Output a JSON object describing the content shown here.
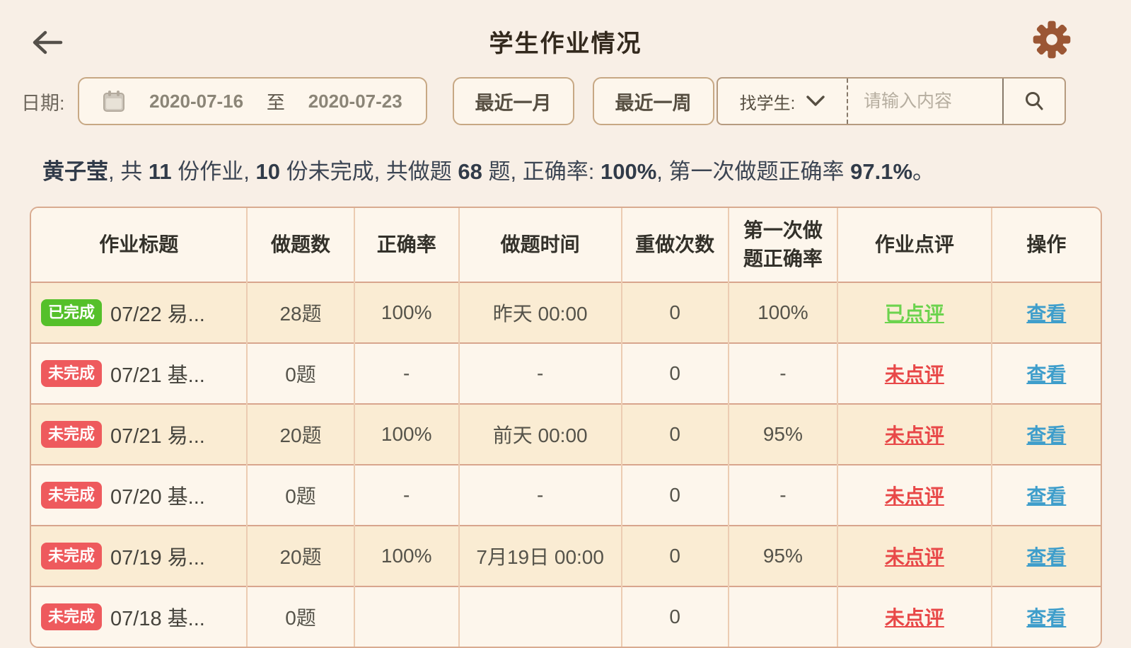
{
  "header": {
    "title": "学生作业情况",
    "back_icon": "arrow-left-icon",
    "settings_icon": "gear-icon"
  },
  "filters": {
    "date_label": "日期:",
    "calendar_icon": "calendar-icon",
    "date_start": "2020-07-16",
    "date_separator": "至",
    "date_end": "2020-07-23",
    "month_button": "最近一月",
    "week_button": "最近一周",
    "student_select_label": "找学生:",
    "chevron_icon": "chevron-down-icon",
    "search_placeholder": "请输入内容",
    "search_icon": "search-icon"
  },
  "summary": {
    "text": "黄子莹, 共 11 份作业, 10 份未完成, 共做题 68 题, 正确率: 100%, 第一次做题正确率 97.1%。",
    "segments": [
      {
        "text": "黄子莹",
        "bold": true
      },
      {
        "text": ", 共 ",
        "bold": false
      },
      {
        "text": "11",
        "bold": true
      },
      {
        "text": " 份作业, ",
        "bold": false
      },
      {
        "text": "10",
        "bold": true
      },
      {
        "text": " 份未完成, 共做题 ",
        "bold": false
      },
      {
        "text": "68",
        "bold": true
      },
      {
        "text": " 题, 正确率: ",
        "bold": false
      },
      {
        "text": "100%",
        "bold": true
      },
      {
        "text": ", 第一次做题正确率 ",
        "bold": false
      },
      {
        "text": "97.1%",
        "bold": true
      },
      {
        "text": "。",
        "bold": false
      }
    ]
  },
  "table": {
    "columns": [
      "作业标题",
      "做题数",
      "正确率",
      "做题时间",
      "重做次数",
      "第一次做题正确率",
      "作业点评",
      "操作"
    ],
    "rows": [
      {
        "status": "已完成",
        "status_type": "done",
        "title": "07/22 易...",
        "count": "28题",
        "accuracy": "100%",
        "time": "昨天 00:00",
        "redo": "0",
        "first_accuracy": "100%",
        "review": "已点评",
        "review_type": "done",
        "action": "查看"
      },
      {
        "status": "未完成",
        "status_type": "undone",
        "title": "07/21 基...",
        "count": "0题",
        "accuracy": "-",
        "time": "-",
        "redo": "0",
        "first_accuracy": "-",
        "review": "未点评",
        "review_type": "undone",
        "action": "查看"
      },
      {
        "status": "未完成",
        "status_type": "undone",
        "title": "07/21 易...",
        "count": "20题",
        "accuracy": "100%",
        "time": "前天 00:00",
        "redo": "0",
        "first_accuracy": "95%",
        "review": "未点评",
        "review_type": "undone",
        "action": "查看"
      },
      {
        "status": "未完成",
        "status_type": "undone",
        "title": "07/20 基...",
        "count": "0题",
        "accuracy": "-",
        "time": "-",
        "redo": "0",
        "first_accuracy": "-",
        "review": "未点评",
        "review_type": "undone",
        "action": "查看"
      },
      {
        "status": "未完成",
        "status_type": "undone",
        "title": "07/19 易...",
        "count": "20题",
        "accuracy": "100%",
        "time": "7月19日 00:00",
        "redo": "0",
        "first_accuracy": "95%",
        "review": "未点评",
        "review_type": "undone",
        "action": "查看"
      },
      {
        "status": "未完成",
        "status_type": "undone",
        "title": "07/18 基...",
        "count": "0题",
        "accuracy": "",
        "time": "",
        "redo": "0",
        "first_accuracy": "",
        "review": "未点评",
        "review_type": "undone",
        "action": "查看"
      }
    ]
  },
  "colors": {
    "page_background": "#f8efe6",
    "panel_background": "#fdf6ec",
    "row_stripe": "#faecd3",
    "control_border": "#c7a884",
    "table_border": "#d9ab90",
    "status_done_green": "#55c02a",
    "status_undone_red": "#ee5a5d",
    "review_done_green": "#6cd34e",
    "review_undone_red": "#e84848",
    "action_link_blue": "#3f9ecb",
    "gear_brown": "#9b5634"
  }
}
